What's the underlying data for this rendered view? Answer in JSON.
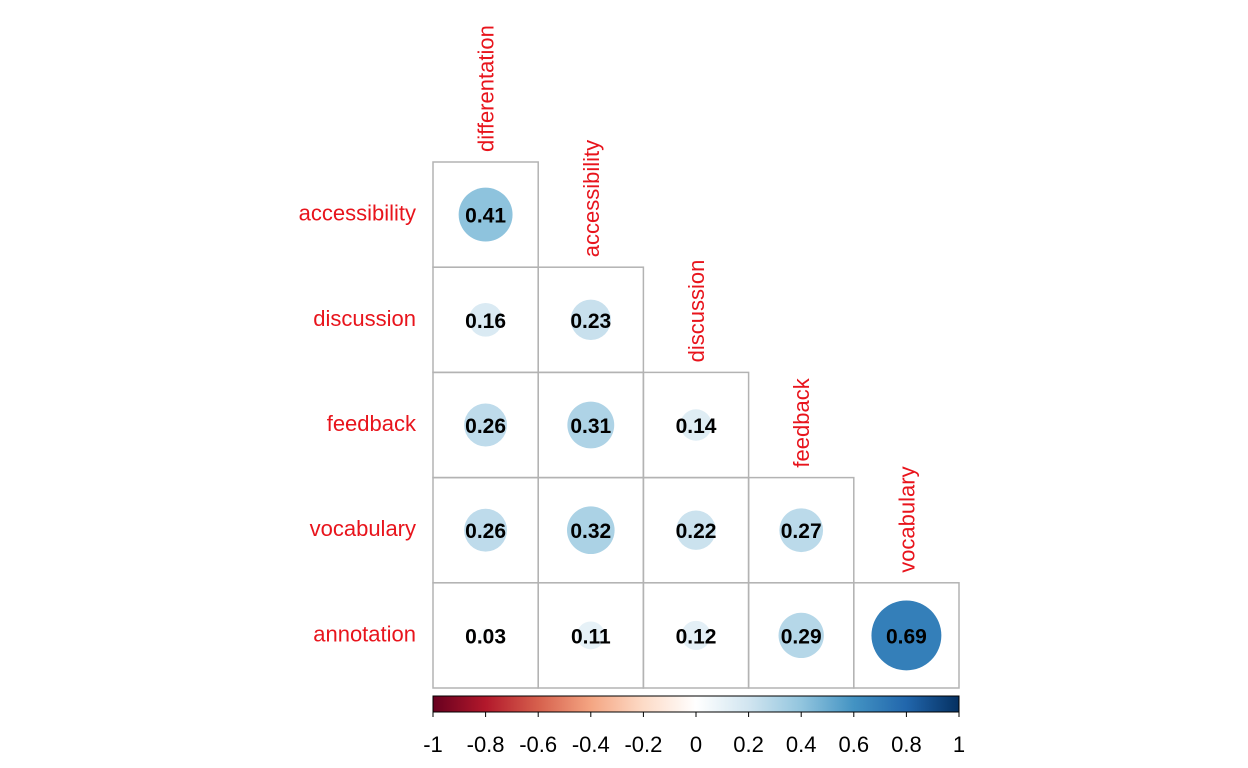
{
  "chart_data": {
    "type": "heatmap",
    "style": "correlation-matrix-circles-lower-triangle",
    "columns": [
      "differentation",
      "accessibility",
      "discussion",
      "feedback",
      "vocabulary"
    ],
    "rows": [
      "accessibility",
      "discussion",
      "feedback",
      "vocabulary",
      "annotation"
    ],
    "values": [
      [
        0.41,
        null,
        null,
        null,
        null
      ],
      [
        0.16,
        0.23,
        null,
        null,
        null
      ],
      [
        0.26,
        0.31,
        0.14,
        null,
        null
      ],
      [
        0.26,
        0.32,
        0.22,
        0.27,
        null
      ],
      [
        0.03,
        0.11,
        0.12,
        0.29,
        0.69
      ]
    ],
    "value_labels": [
      [
        "0.41"
      ],
      [
        "0.16",
        "0.23"
      ],
      [
        "0.26",
        "0.31",
        "0.14"
      ],
      [
        "0.26",
        "0.32",
        "0.22",
        "0.27"
      ],
      [
        "0.03",
        "0.11",
        "0.12",
        "0.29",
        "0.69"
      ]
    ],
    "colorbar": {
      "range": [
        -1,
        1
      ],
      "tick_labels": [
        "-1",
        "-0.8",
        "-0.6",
        "-0.4",
        "-0.2",
        "0",
        "0.2",
        "0.4",
        "0.6",
        "0.8",
        "1"
      ],
      "tick_values": [
        -1,
        -0.8,
        -0.6,
        -0.4,
        -0.2,
        0,
        0.2,
        0.4,
        0.6,
        0.8,
        1
      ],
      "colors": [
        "#67001f",
        "#b2182b",
        "#d6604d",
        "#f4a582",
        "#fddbc7",
        "#ffffff",
        "#d1e5f0",
        "#92c5de",
        "#4393c3",
        "#2166ac",
        "#053061"
      ],
      "placement": "bottom"
    },
    "label_color": "#e8141c",
    "grid": true
  }
}
